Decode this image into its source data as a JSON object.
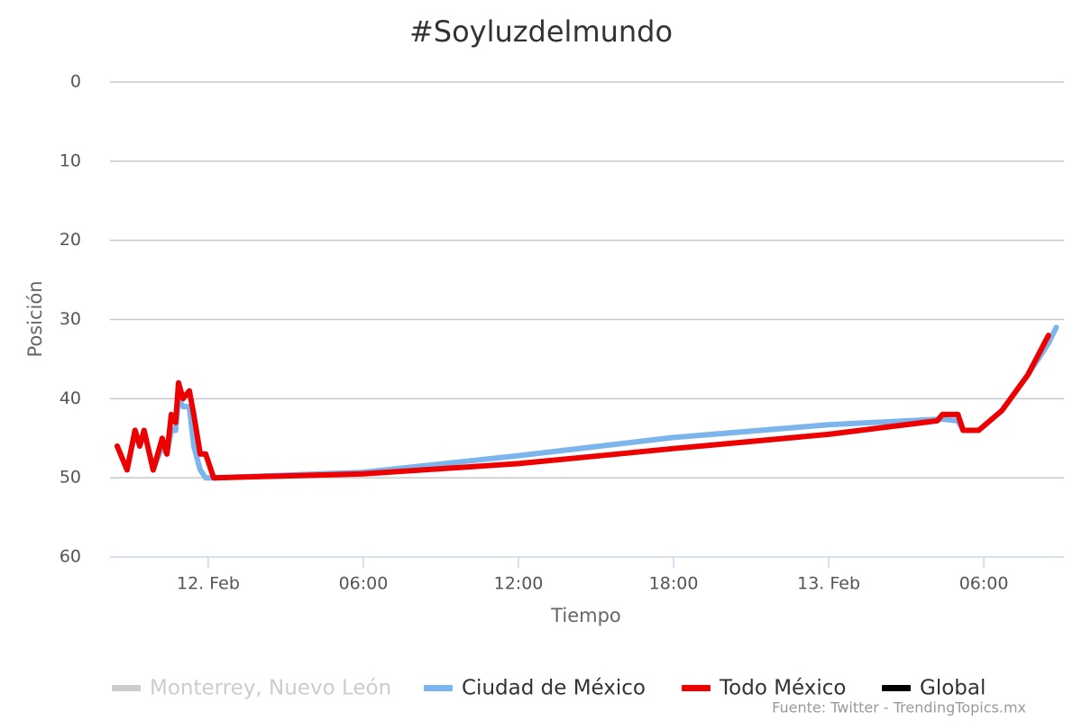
{
  "chart_data": {
    "type": "line",
    "title": "#Soyluzdelmundo",
    "y_label": "Posición",
    "x_label": "Tiempo",
    "source": "Fuente: Twitter - TrendingTopics.mx",
    "y_reversed": true,
    "grid": true,
    "legend_position": "bottom",
    "ylim": [
      0,
      60
    ],
    "yticks": [
      0,
      10,
      20,
      30,
      40,
      50,
      60
    ],
    "xlim": [
      -3.8,
      33.1
    ],
    "xticks": [
      {
        "value": 0,
        "label": "12. Feb"
      },
      {
        "value": 6,
        "label": "06:00"
      },
      {
        "value": 12,
        "label": "12:00"
      },
      {
        "value": 18,
        "label": "18:00"
      },
      {
        "value": 24,
        "label": "13. Feb"
      },
      {
        "value": 30,
        "label": "06:00"
      }
    ],
    "x": [
      -3.52,
      -3.14,
      -2.83,
      -2.65,
      -2.48,
      -2.13,
      -1.78,
      -1.6,
      -1.43,
      -1.26,
      -1.15,
      -0.98,
      -0.73,
      -0.56,
      -0.31,
      -0.1,
      0.21,
      6,
      12,
      18,
      24,
      28.2,
      28.4,
      29,
      29.2,
      29.8,
      30.7,
      31.7,
      32.5,
      32.8
    ],
    "series": [
      {
        "name": "Monterrey, Nuevo León",
        "color": "#cccccc",
        "visible": false,
        "values": [
          null,
          null,
          null,
          null,
          null,
          null,
          null,
          null,
          null,
          null,
          null,
          null,
          null,
          null,
          null,
          null,
          null,
          null,
          null,
          null,
          null,
          null,
          null,
          null,
          null,
          null,
          null,
          null,
          null,
          null
        ]
      },
      {
        "name": "Ciudad de México",
        "color": "#7cb5ec",
        "visible": true,
        "values": [
          46,
          49,
          44,
          46,
          44,
          49,
          46,
          47,
          44,
          44,
          40,
          41,
          41,
          46,
          49,
          50,
          50,
          49.3,
          47.2,
          44.9,
          43.3,
          42.6,
          42.6,
          42.8,
          44,
          44,
          41.5,
          37,
          33,
          31
        ]
      },
      {
        "name": "Todo México",
        "color": "#ee0000",
        "visible": true,
        "values": [
          46,
          49,
          44,
          46,
          44,
          49,
          45,
          47,
          42,
          43,
          38,
          40,
          39,
          42,
          47,
          47,
          50,
          49.5,
          48.2,
          46.3,
          44.5,
          42.8,
          42,
          42,
          44,
          44,
          41.5,
          37,
          32,
          null
        ]
      },
      {
        "name": "Global",
        "color": "#000000",
        "visible": true,
        "values": [
          null,
          null,
          null,
          null,
          null,
          null,
          null,
          null,
          null,
          null,
          null,
          null,
          null,
          null,
          null,
          null,
          null,
          null,
          null,
          null,
          null,
          null,
          null,
          null,
          null,
          null,
          null,
          null,
          null,
          null
        ]
      }
    ]
  }
}
